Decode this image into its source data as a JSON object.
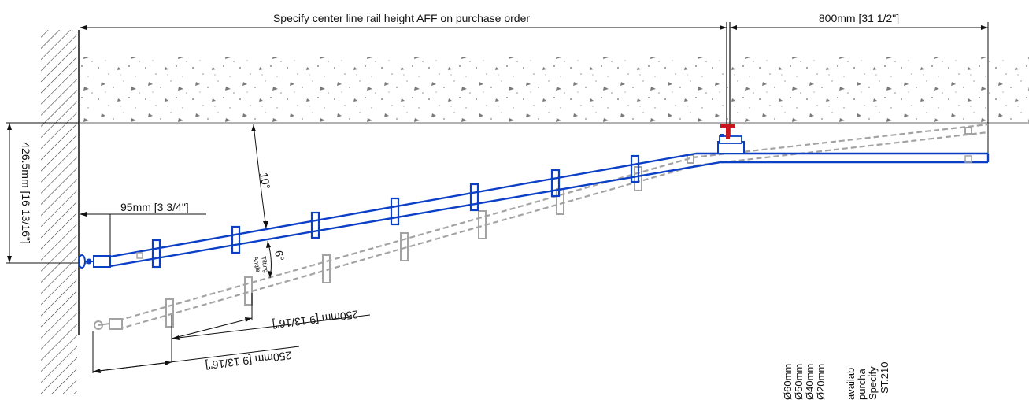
{
  "dimensions": {
    "top_label": "Specify center line rail height AFF on purchase order",
    "right_label": "800mm [31 1/2\"]",
    "vertical_label": "426.5mm [16 13/16\"]",
    "offset_label": "95mm [3 3/4\"]",
    "angle_main": "10°",
    "angle_tilt": "6°",
    "tilting_angle_line1": "Tilting",
    "tilting_angle_line2": "Angle",
    "bracket_spacing_upper": "250mm [9 13/16\"]",
    "bracket_spacing_lower": "250mm [9 13/16\"]"
  },
  "notes": {
    "line1": "ST.210",
    "line2": "Specify",
    "line3": "purcha",
    "line4": "availab",
    "line5": "Ø20mm",
    "line6": "Ø40mm",
    "line7": "Ø50mm",
    "line8": "Ø60mm"
  },
  "colors": {
    "rail": "#0a3fc6",
    "ghost": "#a3a3a3",
    "line": "#111111",
    "anchor": "#c8171c"
  }
}
